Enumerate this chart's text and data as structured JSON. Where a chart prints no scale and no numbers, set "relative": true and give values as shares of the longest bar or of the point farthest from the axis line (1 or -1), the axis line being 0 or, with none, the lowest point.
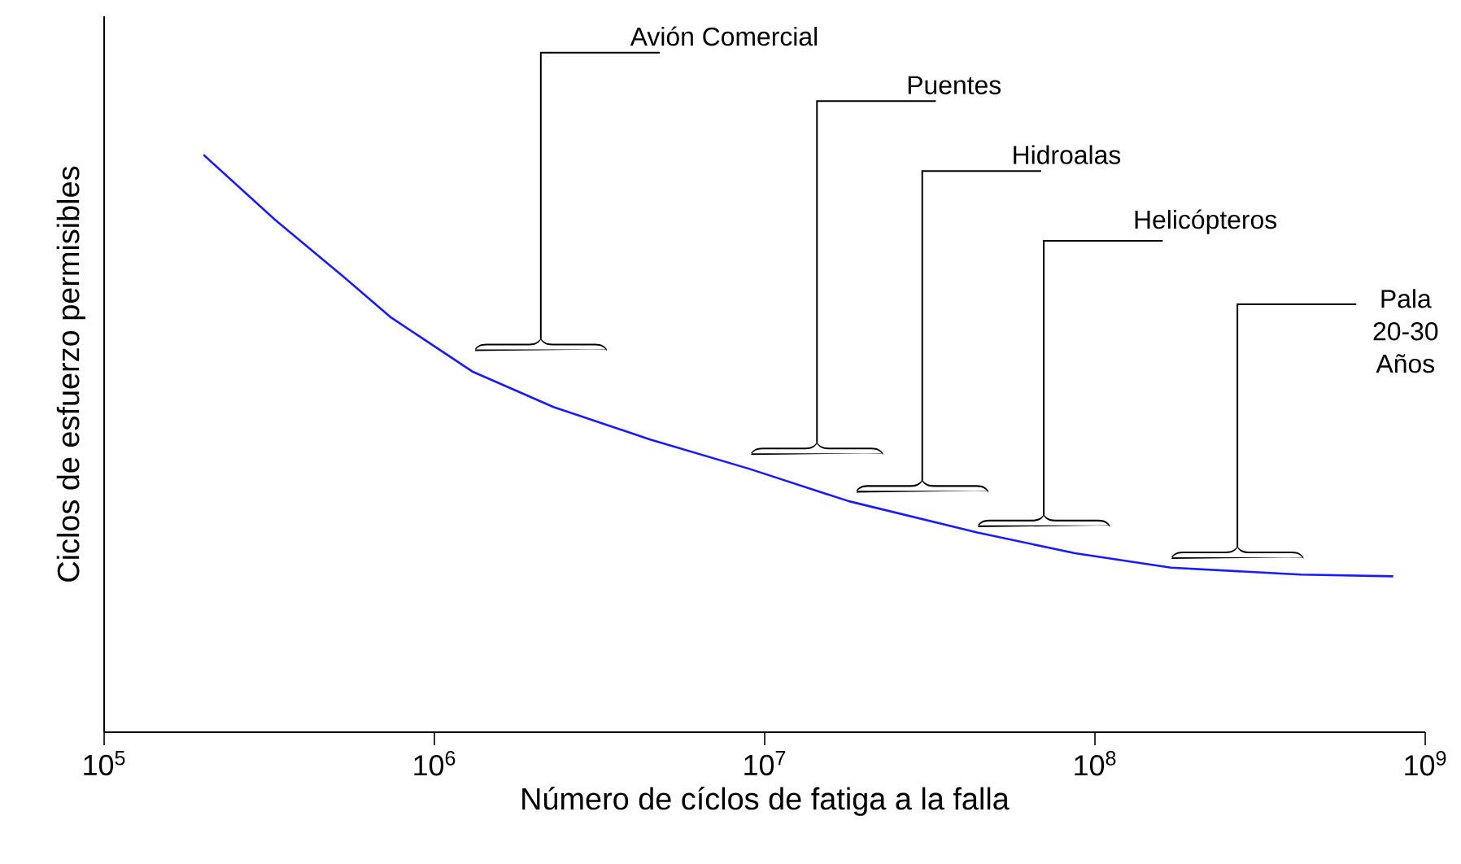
{
  "chart_data": {
    "type": "line",
    "relative": true,
    "xlabel": "Número de cíclos de fatiga a la falla",
    "ylabel": "Ciclos de esfuerzo permisibles",
    "log": "x",
    "xlim": [
      100000,
      1000000000
    ],
    "xticks": [
      {
        "value": 100000,
        "label": "10$^{5}$"
      },
      {
        "value": 1000000,
        "label": "10$^{6}$"
      },
      {
        "value": 10000000,
        "label": "10$^{7}$"
      },
      {
        "value": 100000000,
        "label": "10$^{8}$"
      },
      {
        "value": 1000000000,
        "label": "10$^{9}$"
      }
    ],
    "x": [
      200000,
      330000,
      530000,
      740000,
      1300000,
      2300000,
      4500000,
      9000000,
      18000000,
      44000000,
      87000000,
      170000000,
      420000000,
      800000000
    ],
    "series": [
      {
        "color": "#1a1aff",
        "values": [
          1,
          0.887,
          0.789,
          0.718,
          0.625,
          0.563,
          0.507,
          0.456,
          0.4,
          0.346,
          0.31,
          0.285,
          0.273,
          0.27
        ]
      }
    ],
    "grid": false,
    "marker": "none",
    "line_style": "solid",
    "annotations": [
      "Avión Comercial",
      "Puentes",
      "Hidroalas",
      "Helicópteros",
      "Pala 20-30 Años"
    ]
  }
}
